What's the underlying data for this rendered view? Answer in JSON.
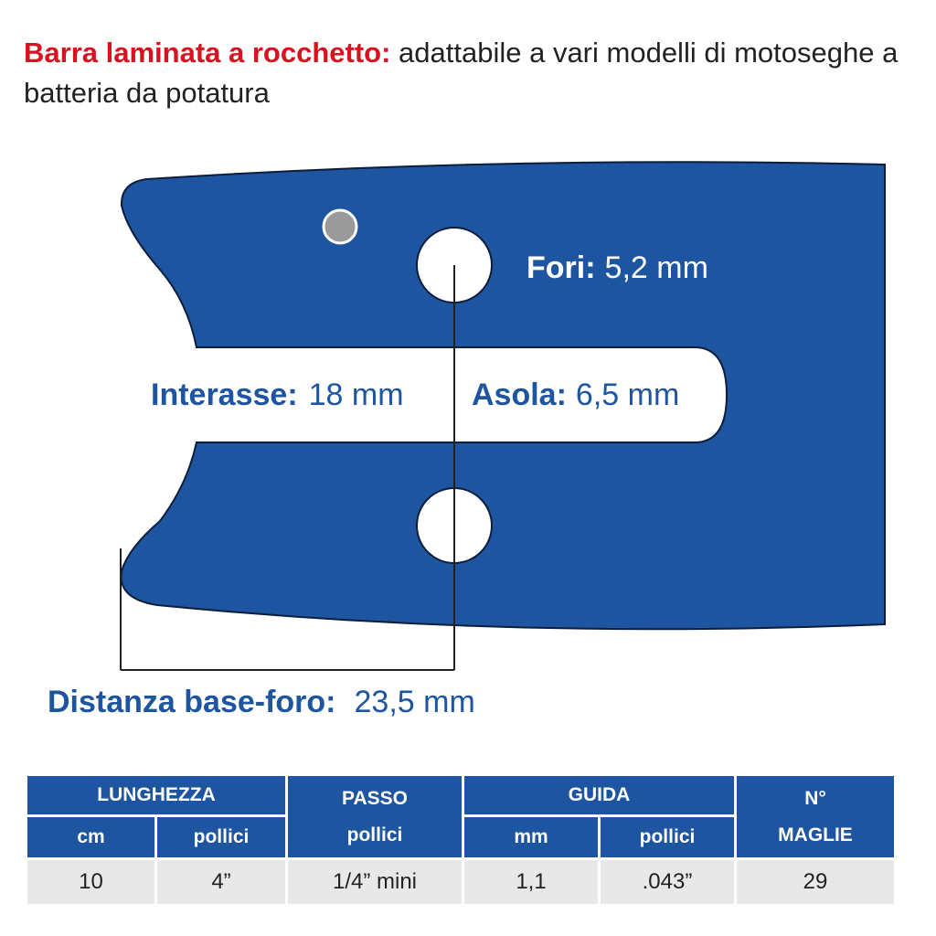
{
  "title": {
    "bold": "Barra laminata a rocchetto:",
    "rest": " adattabile a vari modelli di motoseghe a batteria da potatura"
  },
  "colors": {
    "bar": "#1d55a0",
    "title_accent": "#d8121f",
    "dot": "#9a9a9a"
  },
  "labels": {
    "fori_label": "Fori:",
    "fori_value": "5,2 mm",
    "interasse_label": "Interasse:",
    "interasse_value": "18 mm",
    "asola_label": "Asola:",
    "asola_value": "6,5 mm",
    "distanza_label": "Distanza base-foro:",
    "distanza_value": "23,5 mm"
  },
  "table": {
    "groups": [
      "LUNGHEZZA",
      "PASSO",
      "GUIDA",
      "N°"
    ],
    "subheaders": [
      "cm",
      "pollici",
      "pollici",
      "mm",
      "pollici",
      "MAGLIE"
    ],
    "row": [
      "10",
      "4”",
      "1/4” mini",
      "1,1",
      ".043”",
      "29"
    ]
  }
}
